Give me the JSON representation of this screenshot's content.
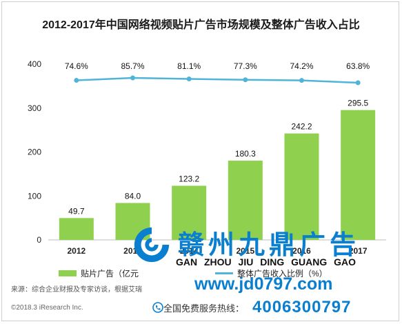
{
  "title": "2012-2017年中国网络视频贴片广告市场规模及整体广告收入占比",
  "chart_data": {
    "type": "bar",
    "categories": [
      "2012",
      "2013",
      "2014",
      "2015",
      "2016",
      "2017"
    ],
    "series": [
      {
        "name": "贴片广告（亿元）",
        "type": "bar",
        "values": [
          49.7,
          84.0,
          123.2,
          180.3,
          242.2,
          295.5
        ],
        "labels": [
          "49.7",
          "84.0",
          "123.2",
          "180.3",
          "242.2",
          "295.5"
        ]
      },
      {
        "name": "占比",
        "type": "line",
        "values": [
          74.6,
          85.7,
          81.1,
          77.3,
          74.2,
          63.8
        ],
        "labels": [
          "74.6%",
          "85.7%",
          "81.1%",
          "77.3%",
          "74.2%",
          "63.8%"
        ]
      }
    ],
    "y_ticks": [
      "400",
      "300",
      "200",
      "100",
      "0"
    ],
    "ylim": [
      0,
      400
    ],
    "colors": {
      "bar": "#8fd14f",
      "line": "#4fb4d8"
    }
  },
  "legend": {
    "bar_label": "贴片广告（亿元",
    "line_label": "整体广告收入比例（%）"
  },
  "source": "来源：综合企业财报及专家访谈，根据艾瑞",
  "copyright": "©2018.3 iResearch Inc.",
  "watermark": {
    "name_cn": "赣州九鼎广告",
    "pinyin": "GAN ZHOU JIU DING GUANG GAO",
    "url": "www.jd0797.com",
    "hotline_label": "全国免费服务热线：",
    "phone": "4006300797"
  }
}
